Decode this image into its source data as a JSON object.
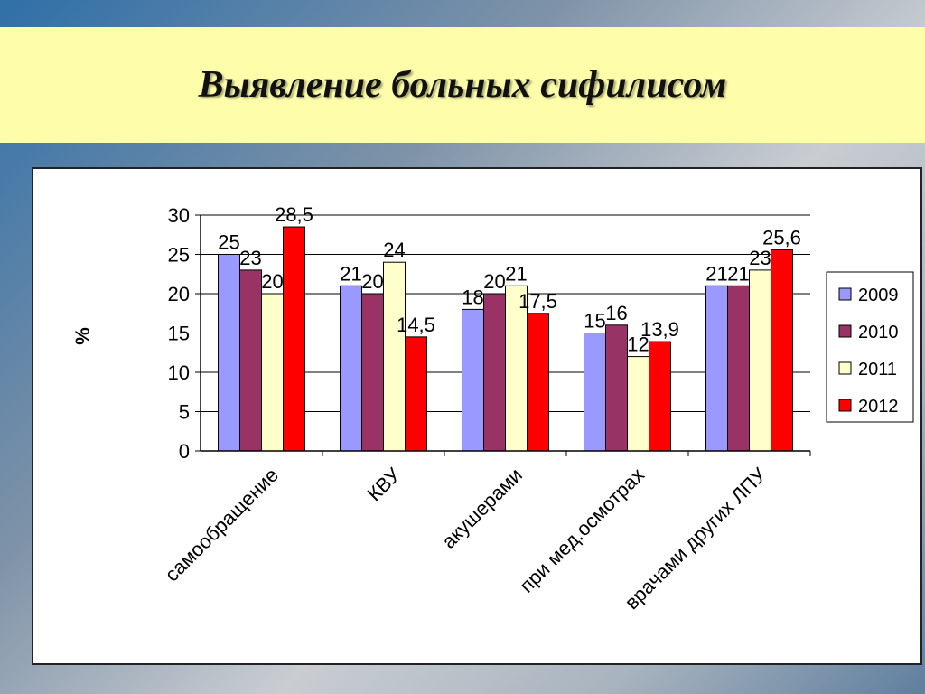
{
  "page": {
    "title": "Выявление больных сифилисом"
  },
  "chart_data": {
    "type": "bar",
    "title": "",
    "ylabel": "%",
    "xlabel": "",
    "ylim": [
      0,
      30
    ],
    "yticks": [
      0,
      5,
      10,
      15,
      20,
      25,
      30
    ],
    "grid": "horizontal",
    "legend_position": "right",
    "categories": [
      "самообращение",
      "КВУ",
      "акушерами",
      "при мед.осмотрах",
      "врачами других ЛПУ"
    ],
    "series": [
      {
        "name": "2009",
        "color": "#9999ff",
        "values": [
          25,
          21,
          18,
          15,
          21
        ],
        "labels": [
          "25",
          "21",
          "18",
          "15",
          "21"
        ]
      },
      {
        "name": "2010",
        "color": "#993366",
        "values": [
          23,
          20,
          20,
          16,
          21
        ],
        "labels": [
          "23",
          "20",
          "20",
          "16",
          "21"
        ]
      },
      {
        "name": "2011",
        "color": "#ffffcc",
        "values": [
          20,
          24,
          21,
          12,
          23
        ],
        "labels": [
          "20",
          "24",
          "21",
          "12",
          "23"
        ]
      },
      {
        "name": "2012",
        "color": "#ff0000",
        "values": [
          28.5,
          14.5,
          17.5,
          13.9,
          25.6
        ],
        "labels": [
          "28,5",
          "14,5",
          "17,5",
          "13,9",
          "25,6"
        ]
      }
    ]
  }
}
